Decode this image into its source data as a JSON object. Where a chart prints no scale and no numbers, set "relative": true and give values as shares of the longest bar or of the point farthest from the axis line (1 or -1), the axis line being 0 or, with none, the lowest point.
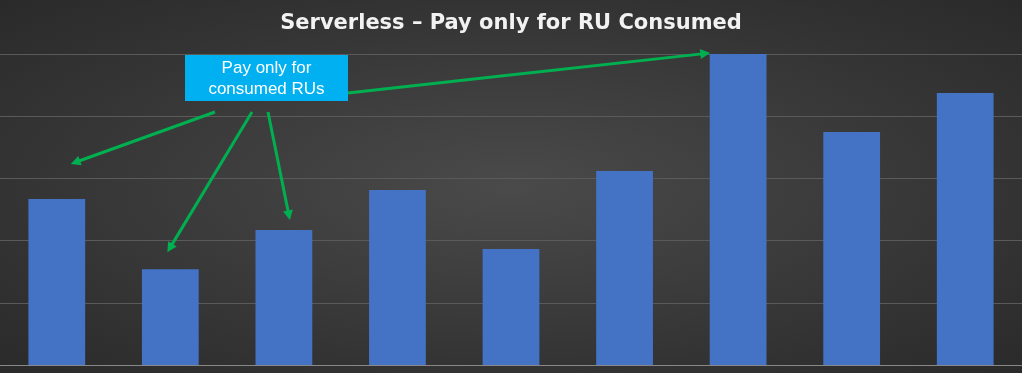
{
  "chart_data": {
    "type": "bar",
    "title": "Serverless – Pay only for RU Consumed",
    "relative": true,
    "grid": true,
    "categories": [
      null,
      null,
      null,
      null,
      null,
      null,
      null,
      null,
      null
    ],
    "values": [
      0.534,
      0.308,
      0.434,
      0.563,
      0.373,
      0.624,
      1,
      0.749,
      0.875
    ],
    "color": "#4472c4",
    "annotations": [
      "Pay only for consumed RUs"
    ]
  }
}
